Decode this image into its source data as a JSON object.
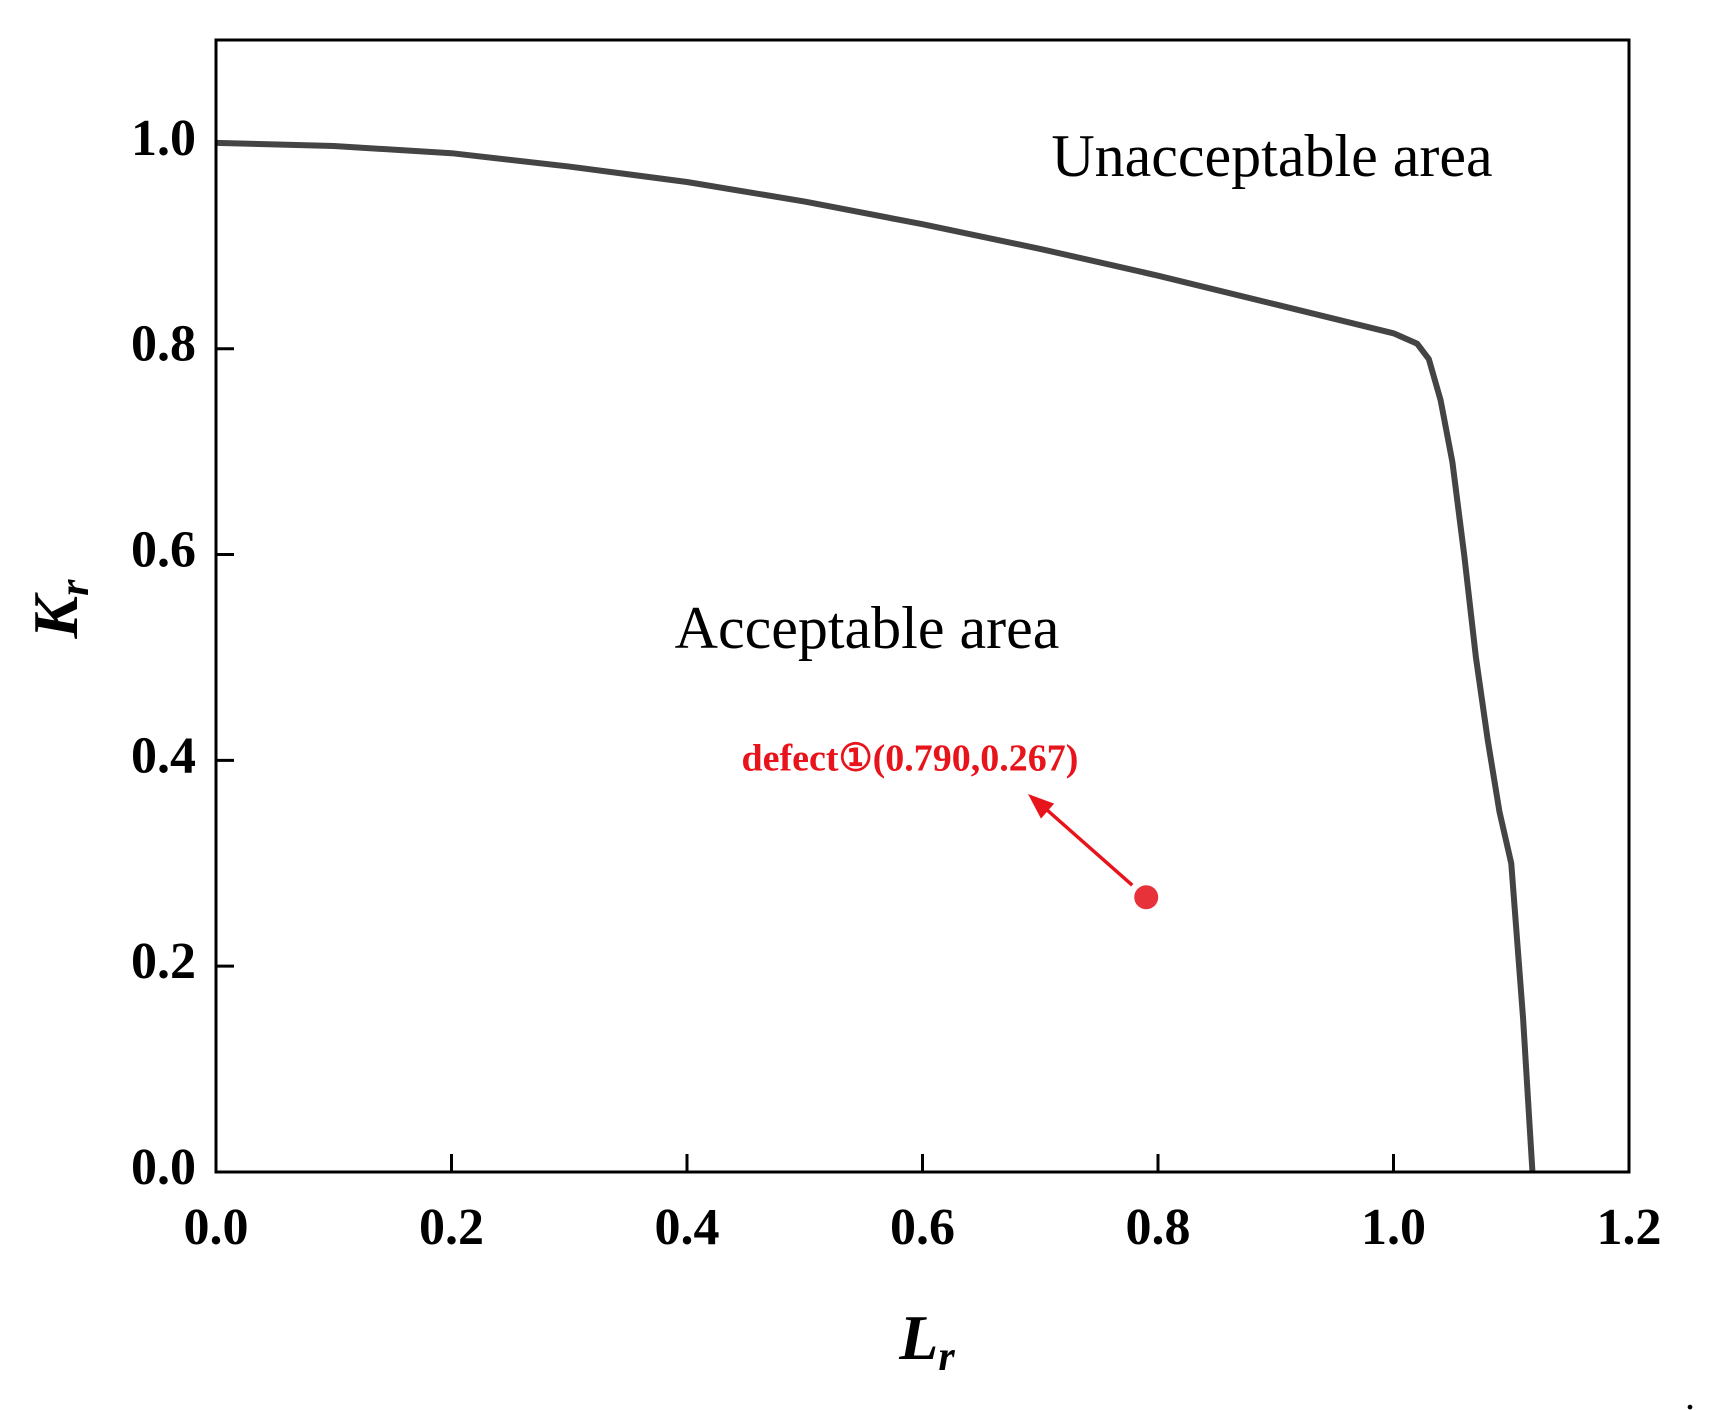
{
  "chart_data": {
    "type": "line",
    "xlabel": "L",
    "xlabel_sub": "r",
    "ylabel": "K",
    "ylabel_sub": "r",
    "xlim": [
      0,
      1.2
    ],
    "xticks": [
      {
        "value": 0,
        "label": "0.0"
      },
      0.2,
      0.4,
      0.6,
      0.8,
      {
        "value": 1,
        "label": "1.0"
      },
      1.2
    ],
    "ylim": [
      0,
      1.1
    ],
    "yticks": [
      {
        "value": 0,
        "label": "0.0"
      },
      0.2,
      0.4,
      0.6,
      0.8,
      {
        "value": 1,
        "label": "1.0"
      }
    ],
    "series": [
      {
        "type": "line",
        "color": "#444444",
        "x": [
          0,
          0.1,
          0.2,
          0.3,
          0.4,
          0.5,
          0.6,
          0.7,
          0.8,
          0.9,
          1.0,
          1.02,
          1.03,
          1.04,
          1.05,
          1.06,
          1.07,
          1.08,
          1.09,
          1.1,
          1.11,
          1.118
        ],
        "values": [
          1.0,
          0.997,
          0.99,
          0.977,
          0.962,
          0.943,
          0.921,
          0.897,
          0.871,
          0.843,
          0.815,
          0.805,
          0.79,
          0.75,
          0.69,
          0.6,
          0.5,
          0.42,
          0.35,
          0.3,
          0.15,
          0
        ]
      },
      {
        "type": "scatter",
        "color": "#e8323a",
        "x": [
          0.79
        ],
        "values": [
          0.267
        ]
      }
    ],
    "annotations": [
      "Unacceptable area",
      "Acceptable area",
      "defect①(0.790,0.267)"
    ],
    "trailing_mark": "."
  }
}
